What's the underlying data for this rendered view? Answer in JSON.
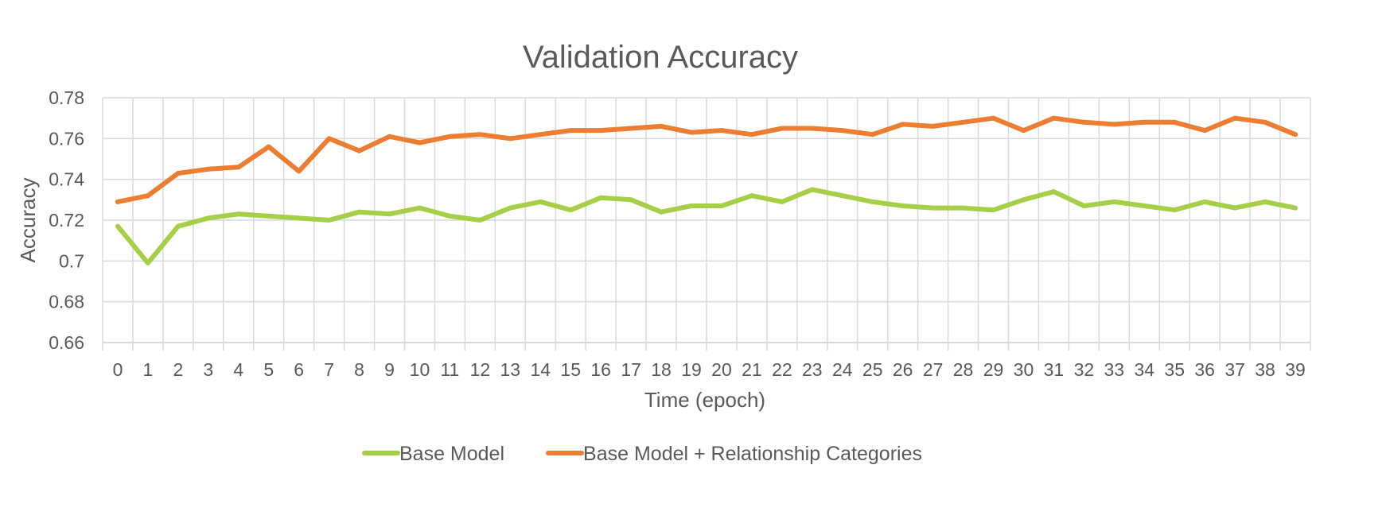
{
  "chart_data": {
    "type": "line",
    "title": "Validation Accuracy",
    "xlabel": "Time (epoch)",
    "ylabel": "Accuracy",
    "ylim": [
      0.66,
      0.78
    ],
    "yticks": [
      "0.66",
      "0.68",
      "0.7",
      "0.72",
      "0.74",
      "0.76",
      "0.78"
    ],
    "x": [
      "0",
      "1",
      "2",
      "3",
      "4",
      "5",
      "6",
      "7",
      "8",
      "9",
      "10",
      "11",
      "12",
      "13",
      "14",
      "15",
      "16",
      "17",
      "18",
      "19",
      "20",
      "21",
      "22",
      "23",
      "24",
      "25",
      "26",
      "27",
      "28",
      "29",
      "30",
      "31",
      "32",
      "33",
      "34",
      "35",
      "36",
      "37",
      "38",
      "39"
    ],
    "grid": true,
    "legend_position": "bottom",
    "series": [
      {
        "name": "Base Model",
        "color": "#a5cf46",
        "values": [
          0.717,
          0.699,
          0.717,
          0.721,
          0.723,
          0.722,
          0.721,
          0.72,
          0.724,
          0.723,
          0.726,
          0.722,
          0.72,
          0.726,
          0.729,
          0.725,
          0.731,
          0.73,
          0.724,
          0.727,
          0.727,
          0.732,
          0.729,
          0.735,
          0.732,
          0.729,
          0.727,
          0.726,
          0.726,
          0.725,
          0.73,
          0.734,
          0.727,
          0.729,
          0.727,
          0.725,
          0.729,
          0.726,
          0.729,
          0.726
        ]
      },
      {
        "name": "Base Model + Relationship Categories",
        "color": "#ed7d31",
        "values": [
          0.729,
          0.732,
          0.743,
          0.745,
          0.746,
          0.756,
          0.744,
          0.76,
          0.754,
          0.761,
          0.758,
          0.761,
          0.762,
          0.76,
          0.762,
          0.764,
          0.764,
          0.765,
          0.766,
          0.763,
          0.764,
          0.762,
          0.765,
          0.765,
          0.764,
          0.762,
          0.767,
          0.766,
          0.768,
          0.77,
          0.764,
          0.77,
          0.768,
          0.767,
          0.768,
          0.768,
          0.764,
          0.77,
          0.768,
          0.762
        ]
      }
    ]
  }
}
